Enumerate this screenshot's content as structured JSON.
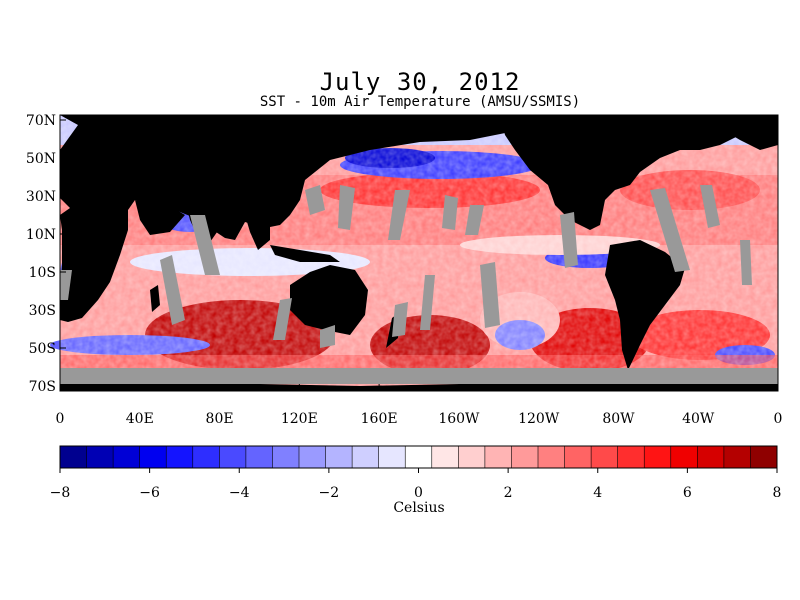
{
  "title": "July 30, 2012",
  "subtitle": "SST - 10m Air Temperature (AMSU/SSMIS)",
  "lat_labels": [
    "70N",
    "50N",
    "30N",
    "10N",
    "10S",
    "30S",
    "50S",
    "70S"
  ],
  "lon_labels": [
    "0",
    "40E",
    "80E",
    "120E",
    "160E",
    "160W",
    "120W",
    "80W",
    "40W",
    "0"
  ],
  "colorbar": {
    "units": "Celsius",
    "tick_labels": [
      "−8",
      "−6",
      "−4",
      "−2",
      "0",
      "2",
      "4",
      "6",
      "8"
    ],
    "range": [
      -8,
      8
    ],
    "colors": [
      "#00008f",
      "#0000b4",
      "#0000d6",
      "#0000f0",
      "#1414ff",
      "#2e2eff",
      "#4a4aff",
      "#6464ff",
      "#8080ff",
      "#9a9aff",
      "#b4b4ff",
      "#cfcfff",
      "#e6e6ff",
      "#ffffff",
      "#ffe6e6",
      "#ffcfcf",
      "#ffb4b4",
      "#ff9a9a",
      "#ff8080",
      "#ff6464",
      "#ff4a4a",
      "#ff2e2e",
      "#ff1414",
      "#f00000",
      "#d60000",
      "#b40000",
      "#8f0000"
    ]
  },
  "map_colors": {
    "land": "#000000",
    "no_data": "#999999"
  }
}
